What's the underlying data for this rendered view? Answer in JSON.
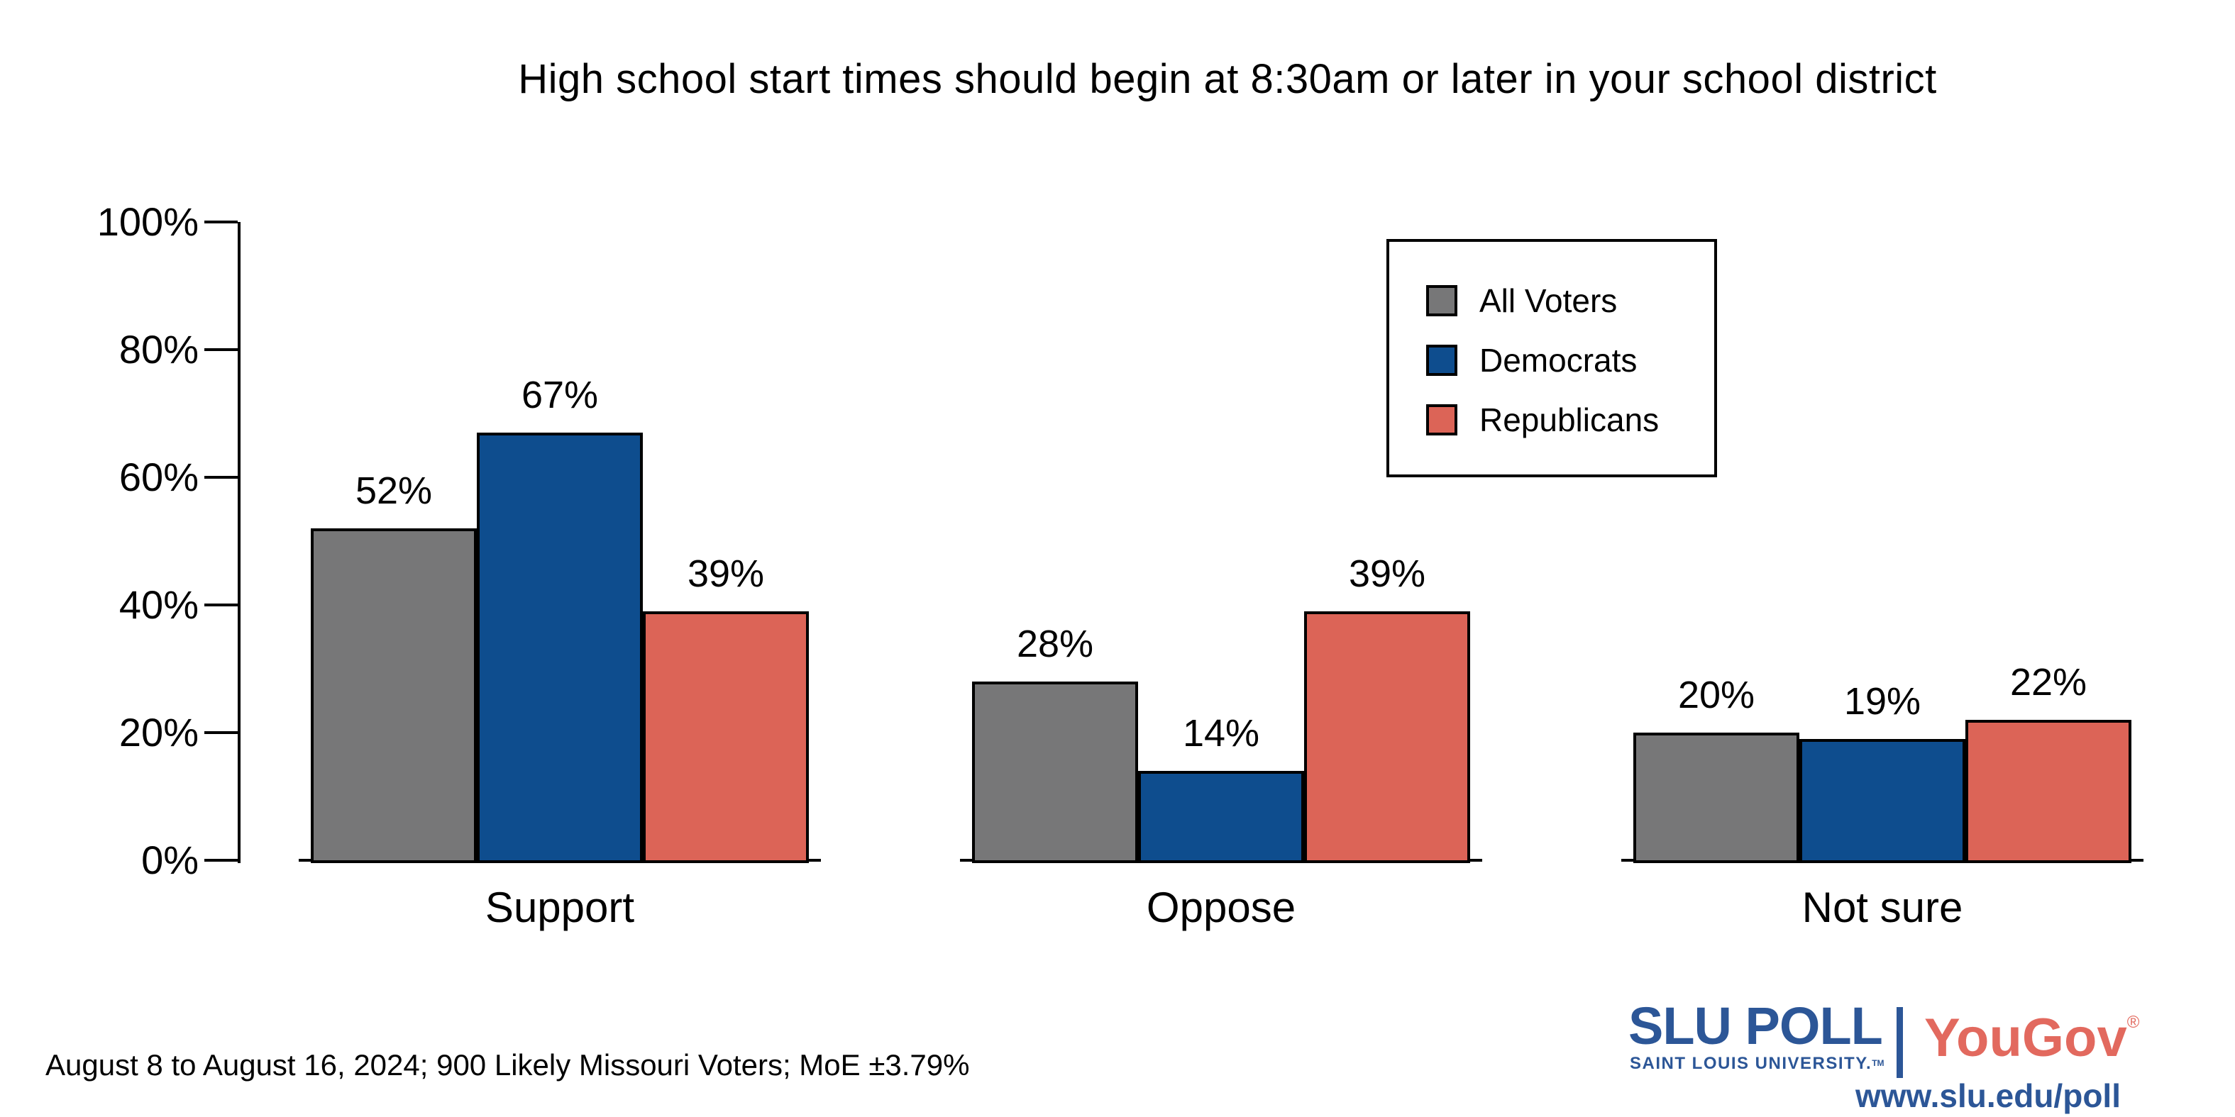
{
  "title": "High school start times should begin at 8:30am or later in your school district",
  "chart_data": {
    "type": "bar",
    "categories": [
      "Support",
      "Oppose",
      "Not sure"
    ],
    "series": [
      {
        "name": "All Voters",
        "color": "#777778",
        "values": [
          52,
          28,
          20
        ]
      },
      {
        "name": "Democrats",
        "color": "#0e4d8e",
        "values": [
          67,
          14,
          19
        ]
      },
      {
        "name": "Republicans",
        "color": "#dc6457",
        "values": [
          39,
          39,
          22
        ]
      }
    ],
    "value_suffix": "%",
    "ylim": [
      0,
      100
    ],
    "yticks": [
      0,
      20,
      40,
      60,
      80,
      100
    ],
    "ytick_suffix": "%",
    "grid": false,
    "legend_position": "top-right",
    "bar_labels_shown": true
  },
  "footer": {
    "note": "August 8 to August 16, 2024; 900 Likely Missouri Voters; MoE ±3.79%"
  },
  "branding": {
    "slu_poll": "SLU POLL",
    "slu_sub": "SAINT LOUIS UNIVERSITY.",
    "slu_tm": "TM",
    "yougov": "YouGov",
    "yougov_reg": "®",
    "url": "www.slu.edu/poll",
    "slu_blue": "#2c5697",
    "yougov_red": "#e2695e"
  }
}
